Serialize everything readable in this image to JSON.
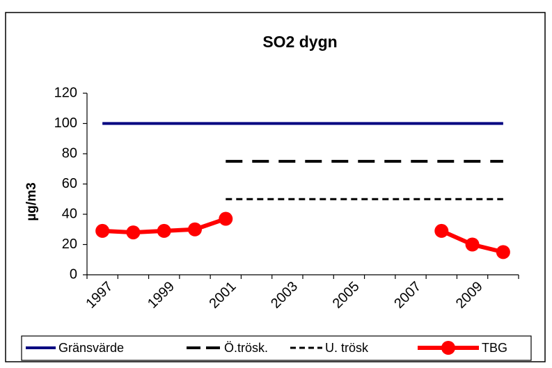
{
  "chart_data": {
    "type": "line",
    "title": "SO2 dygn",
    "y_label": "µg/m3",
    "categories": [
      "1997",
      null,
      "1999",
      null,
      "2001",
      null,
      "2003",
      null,
      "2005",
      null,
      "2007",
      null,
      "2009",
      null
    ],
    "series": [
      {
        "name": "Gränsvärde",
        "color": "#000080",
        "line_style": "solid",
        "values": [
          100,
          100,
          100,
          100,
          100,
          100,
          100,
          100,
          100,
          100,
          100,
          100,
          100,
          100
        ]
      },
      {
        "name": "Ö.trösk.",
        "color": "#000000",
        "line_style": "long-dash",
        "values": [
          null,
          null,
          null,
          null,
          75,
          75,
          75,
          75,
          75,
          75,
          75,
          75,
          75,
          75
        ]
      },
      {
        "name": "U. trösk",
        "color": "#000000",
        "line_style": "short-dash",
        "values": [
          null,
          null,
          null,
          null,
          50,
          50,
          50,
          50,
          50,
          50,
          50,
          50,
          50,
          50
        ]
      },
      {
        "name": "TBG",
        "color": "#ff0000",
        "line_style": "solid",
        "marker": "circle",
        "values": [
          29,
          28,
          29,
          30,
          37,
          null,
          null,
          null,
          null,
          null,
          null,
          29,
          20,
          15
        ]
      }
    ],
    "ylim": [
      0,
      120
    ],
    "yticks": [
      0,
      20,
      40,
      60,
      80,
      100,
      120
    ],
    "grid": false,
    "legend": "bottom"
  }
}
